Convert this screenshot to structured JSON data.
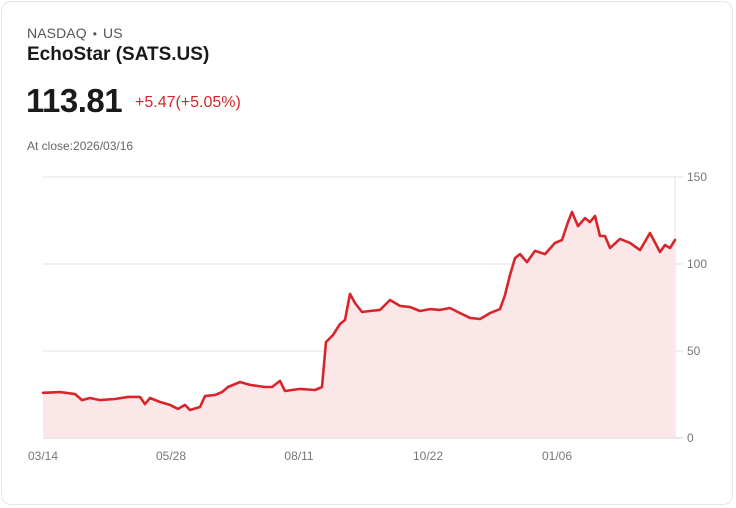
{
  "header": {
    "exchange": "NASDAQ",
    "separator": "•",
    "region": "US",
    "title": "EchoStar (SATS.US)",
    "price": "113.81",
    "change": "+5.47(+5.05%)",
    "at_close": "At close:2026/03/16"
  },
  "colors": {
    "line": "#d7262b",
    "fill": "#fbe7e8",
    "grid": "#e2e2e2",
    "change_negative_or_positive": "#d7262b"
  },
  "chart_data": {
    "type": "area",
    "title": "EchoStar (SATS.US)",
    "xlabel": "",
    "ylabel": "",
    "ylim": [
      0,
      150
    ],
    "yticks": [
      0,
      50,
      100,
      150
    ],
    "xtick_labels": [
      "03/14",
      "05/28",
      "08/11",
      "10/22",
      "01/06"
    ],
    "grid": true,
    "legend": "none",
    "y_axis_position": "right",
    "points": [
      [
        0,
        26.0
      ],
      [
        17,
        26.4
      ],
      [
        32,
        25.3
      ],
      [
        39,
        21.8
      ],
      [
        47,
        23.0
      ],
      [
        57,
        21.8
      ],
      [
        72,
        22.4
      ],
      [
        85,
        23.6
      ],
      [
        97,
        23.6
      ],
      [
        102,
        19.5
      ],
      [
        107,
        23.0
      ],
      [
        117,
        20.7
      ],
      [
        127,
        19.0
      ],
      [
        135,
        16.7
      ],
      [
        142,
        19.0
      ],
      [
        147,
        16.1
      ],
      [
        157,
        17.8
      ],
      [
        162,
        24.1
      ],
      [
        172,
        24.7
      ],
      [
        179,
        26.4
      ],
      [
        185,
        29.3
      ],
      [
        197,
        32.2
      ],
      [
        207,
        30.5
      ],
      [
        222,
        29.3
      ],
      [
        229,
        29.3
      ],
      [
        237,
        32.8
      ],
      [
        242,
        27.0
      ],
      [
        257,
        28.2
      ],
      [
        272,
        27.6
      ],
      [
        279,
        29.3
      ],
      [
        283,
        55.2
      ],
      [
        290,
        59.2
      ],
      [
        297,
        65.5
      ],
      [
        302,
        67.8
      ],
      [
        307,
        82.8
      ],
      [
        312,
        77.6
      ],
      [
        319,
        72.4
      ],
      [
        327,
        73.0
      ],
      [
        337,
        73.6
      ],
      [
        347,
        79.3
      ],
      [
        357,
        75.9
      ],
      [
        367,
        75.3
      ],
      [
        377,
        73.0
      ],
      [
        387,
        74.1
      ],
      [
        397,
        73.6
      ],
      [
        407,
        74.7
      ],
      [
        417,
        71.8
      ],
      [
        427,
        69.0
      ],
      [
        437,
        68.4
      ],
      [
        447,
        71.8
      ],
      [
        457,
        74.1
      ],
      [
        462,
        82.2
      ],
      [
        467,
        93.7
      ],
      [
        472,
        103.4
      ],
      [
        477,
        105.7
      ],
      [
        484,
        101.1
      ],
      [
        492,
        107.5
      ],
      [
        502,
        105.7
      ],
      [
        512,
        112.1
      ],
      [
        519,
        113.8
      ],
      [
        525,
        124.1
      ],
      [
        529,
        129.9
      ],
      [
        535,
        121.8
      ],
      [
        542,
        126.4
      ],
      [
        547,
        124.1
      ],
      [
        552,
        127.6
      ],
      [
        557,
        116.1
      ],
      [
        562,
        116.1
      ],
      [
        567,
        109.2
      ],
      [
        577,
        114.4
      ],
      [
        587,
        112.1
      ],
      [
        597,
        108.0
      ],
      [
        607,
        117.8
      ],
      [
        617,
        106.9
      ],
      [
        622,
        110.9
      ],
      [
        627,
        109.2
      ],
      [
        632,
        113.8
      ]
    ],
    "points_note": "x = pixel offset from chart left (0..632 spans 03/14/2025 to 03/16/2026), y = price",
    "last_value": 113.81
  }
}
